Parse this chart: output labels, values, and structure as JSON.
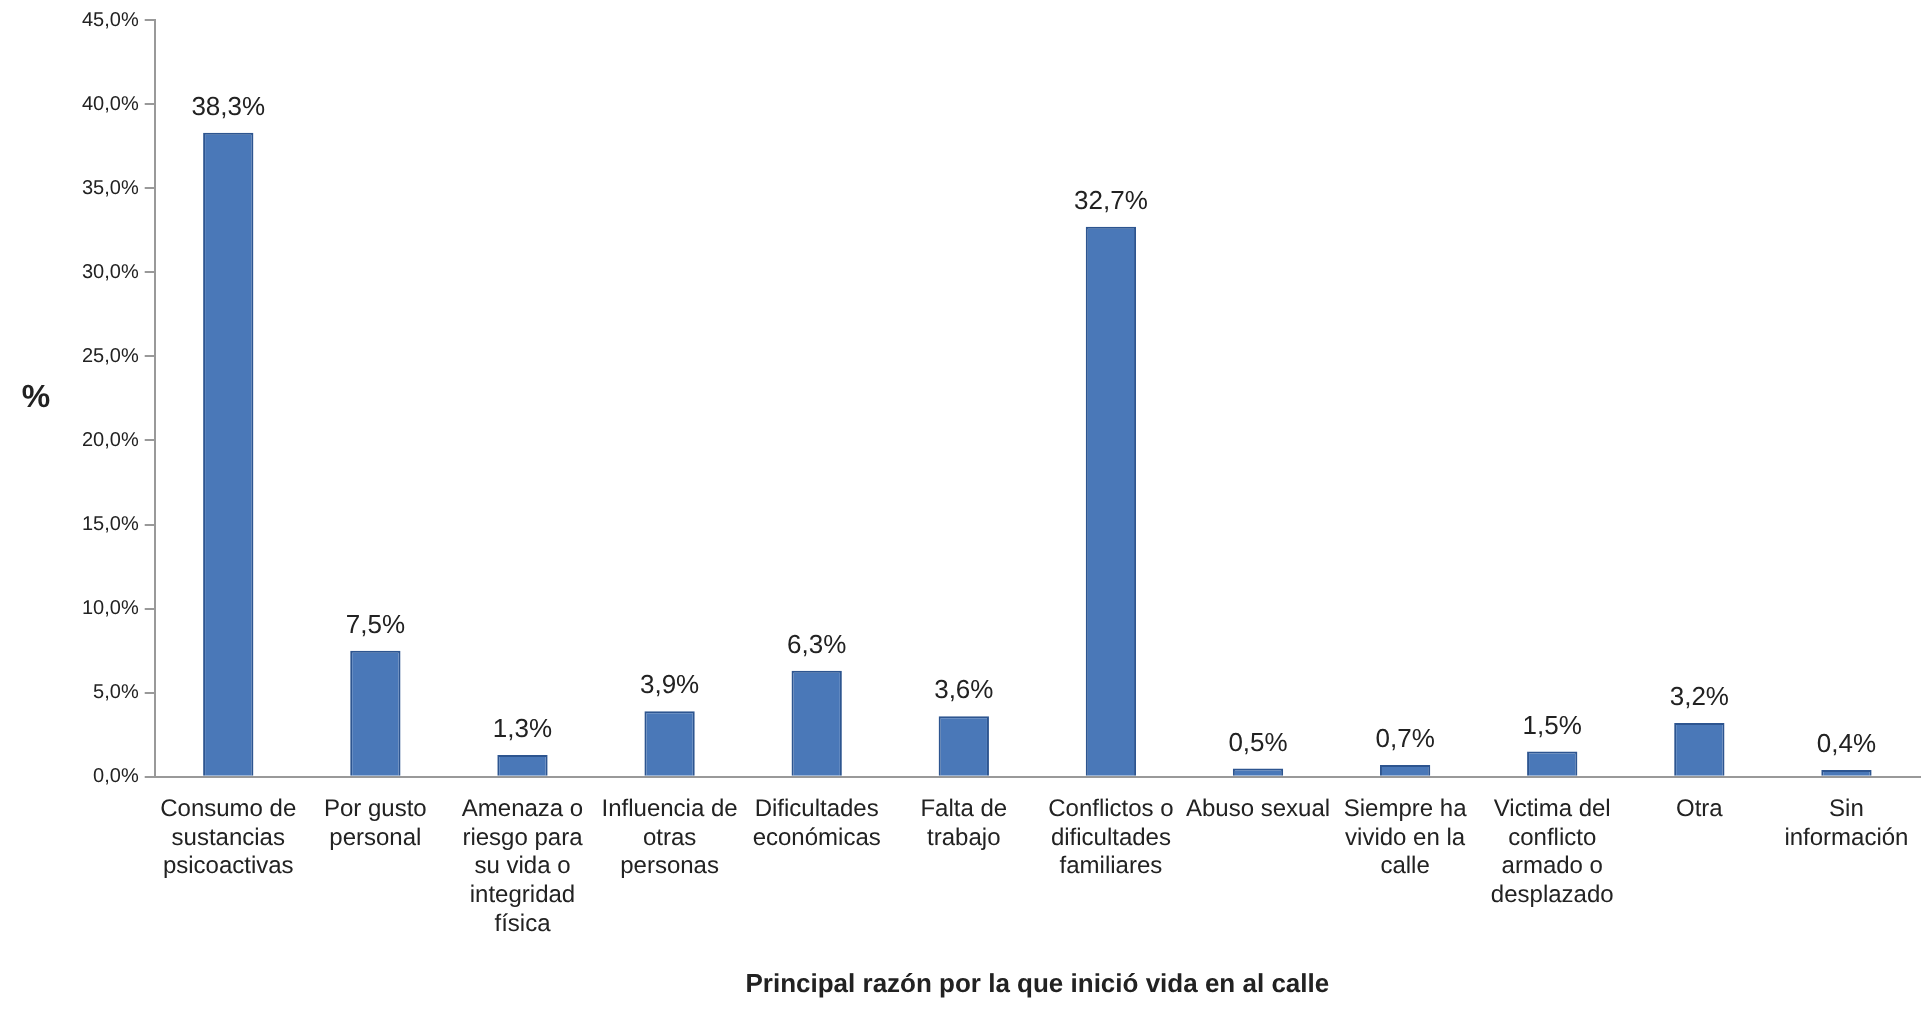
{
  "chart_data": {
    "type": "bar",
    "xlabel": "Principal razón por la que inició vida en al calle",
    "ylabel": "%",
    "categories": [
      "Consumo de sustancias psicoactivas",
      "Por gusto personal",
      "Amenaza o riesgo para su vida o integridad física",
      "Influencia de otras personas",
      "Dificultades económicas",
      "Falta de trabajo",
      "Conflictos o dificultades familiares",
      "Abuso sexual",
      "Siempre ha vivido en la calle",
      "Victima del conflicto armado o desplazado",
      "Otra",
      "Sin información"
    ],
    "values": [
      38.3,
      7.5,
      1.3,
      3.9,
      6.3,
      3.6,
      32.7,
      0.5,
      0.7,
      1.5,
      3.2,
      0.4
    ],
    "value_labels": [
      "38,3%",
      "7,5%",
      "1,3%",
      "3,9%",
      "6,3%",
      "3,6%",
      "32,7%",
      "0,5%",
      "0,7%",
      "1,5%",
      "3,2%",
      "0,4%"
    ],
    "color": "#4a78b8",
    "ylim": [
      0,
      45
    ],
    "yticks": [
      {
        "value": 0,
        "label": "0,0%"
      },
      {
        "value": 5,
        "label": "5,0%"
      },
      {
        "value": 10,
        "label": "10,0%"
      },
      {
        "value": 15,
        "label": "15,0%"
      },
      {
        "value": 20,
        "label": "20,0%"
      },
      {
        "value": 25,
        "label": "25,0%"
      },
      {
        "value": 30,
        "label": "30,0%"
      },
      {
        "value": 35,
        "label": "35,0%"
      },
      {
        "value": 40,
        "label": "40,0%"
      },
      {
        "value": 45,
        "label": "45,0%"
      }
    ],
    "grid": false,
    "legend": false
  }
}
